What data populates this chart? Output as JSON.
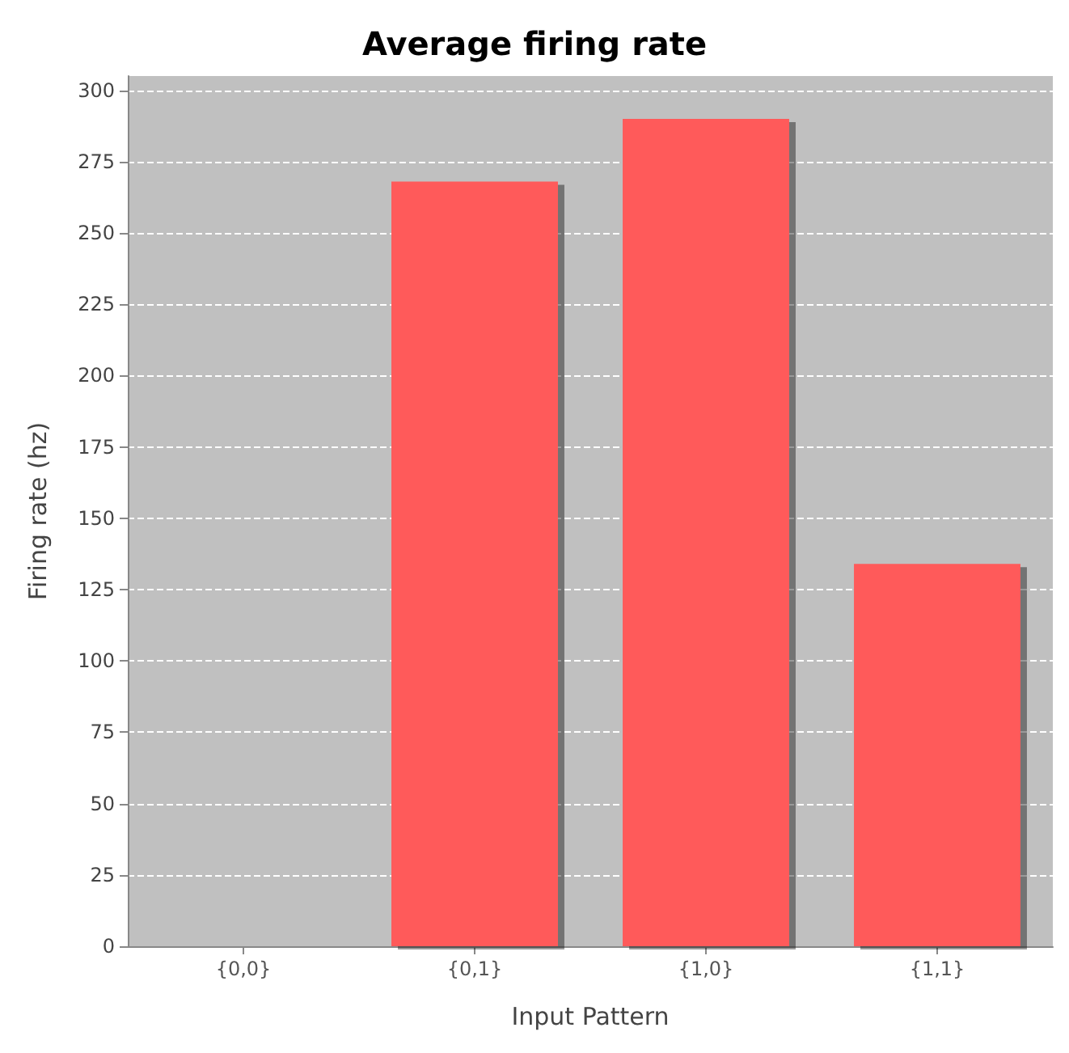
{
  "chart_data": {
    "type": "bar",
    "title": "Average firing rate",
    "xlabel": "Input Pattern",
    "ylabel": "Firing rate (hz)",
    "categories": [
      "{0,0}",
      "{0,1}",
      "{1,0}",
      "{1,1}"
    ],
    "values": [
      0,
      268,
      290,
      134
    ],
    "color": "#ff5a5a",
    "ylim": [
      0,
      305
    ],
    "yticks": [
      0,
      25,
      50,
      75,
      100,
      125,
      150,
      175,
      200,
      225,
      250,
      275,
      300
    ],
    "grid": "y"
  }
}
